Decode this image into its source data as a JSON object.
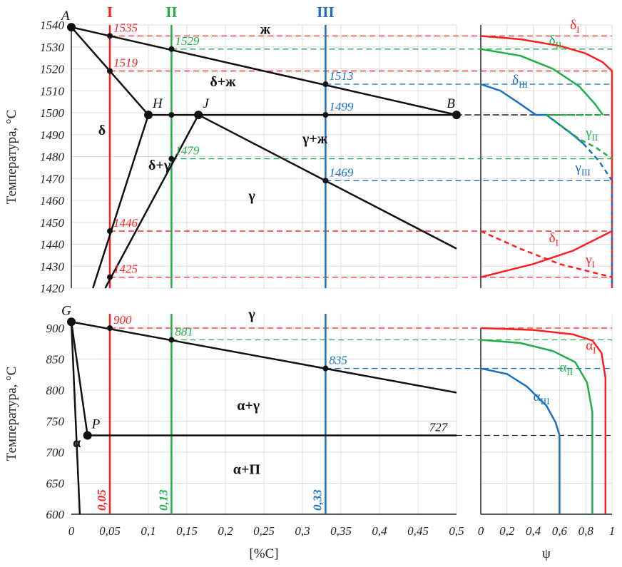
{
  "chart_data": [
    {
      "type": "line",
      "panel": "top-left",
      "ylabel": "Температура, °C",
      "xlim": [
        0,
        0.5
      ],
      "ylim": [
        1420,
        1540
      ],
      "yticks": [
        "1420",
        "1430",
        "1440",
        "1450",
        "1460",
        "1470",
        "1480",
        "1490",
        "1500",
        "1510",
        "1520",
        "1530",
        "1540"
      ],
      "grid": true,
      "lines": [
        {
          "name": "liquidus AB",
          "points": [
            [
              0,
              1539
            ],
            [
              0.5,
              1499
            ]
          ]
        },
        {
          "name": "solidus AH",
          "points": [
            [
              0,
              1539
            ],
            [
              0.1,
              1499
            ]
          ]
        },
        {
          "name": "peritectic HB",
          "points": [
            [
              0.1,
              1499
            ],
            [
              0.5,
              1499
            ]
          ]
        },
        {
          "name": "JC",
          "points": [
            [
              0.165,
              1499
            ],
            [
              0.5,
              1438
            ]
          ]
        },
        {
          "name": "H-lower",
          "points": [
            [
              0.1,
              1499
            ],
            [
              0.028,
              1420
            ]
          ]
        },
        {
          "name": "J-lower",
          "points": [
            [
              0.165,
              1499
            ],
            [
              0.044,
              1420
            ]
          ]
        }
      ],
      "points": [
        {
          "label": "A",
          "x": 0,
          "y": 1539
        },
        {
          "label": "H",
          "x": 0.1,
          "y": 1499
        },
        {
          "label": "J",
          "x": 0.165,
          "y": 1499
        },
        {
          "label": "B",
          "x": 0.5,
          "y": 1499
        }
      ],
      "regions": [
        {
          "label": "ж",
          "x": 0.245,
          "y": 1536
        },
        {
          "label": "δ+ж",
          "x": 0.18,
          "y": 1512
        },
        {
          "label": "δ",
          "x": 0.035,
          "y": 1490
        },
        {
          "label": "δ+γ",
          "x": 0.1,
          "y": 1474
        },
        {
          "label": "γ+ж",
          "x": 0.3,
          "y": 1486
        },
        {
          "label": "γ",
          "x": 0.23,
          "y": 1460
        }
      ],
      "marks": [
        {
          "label": "1535",
          "x": 0.05,
          "y": 1535,
          "alloy": 0
        },
        {
          "label": "1519",
          "x": 0.05,
          "y": 1519,
          "alloy": 0
        },
        {
          "label": "1446",
          "x": 0.05,
          "y": 1446,
          "alloy": 0
        },
        {
          "label": "1425",
          "x": 0.05,
          "y": 1425,
          "alloy": 0
        },
        {
          "label": "1529",
          "x": 0.13,
          "y": 1529,
          "alloy": 1
        },
        {
          "label": "1479",
          "x": 0.13,
          "y": 1479,
          "alloy": 1
        },
        {
          "label": "1513",
          "x": 0.33,
          "y": 1513,
          "alloy": 2
        },
        {
          "label": "1469",
          "x": 0.33,
          "y": 1469,
          "alloy": 2
        },
        {
          "label": "1499",
          "x": 0.33,
          "y": 1499,
          "alloy": 2,
          "black": true
        }
      ]
    },
    {
      "type": "line",
      "panel": "bottom-left",
      "ylabel": "Температура, °C",
      "xlabel": "[%C]",
      "xlim": [
        0,
        0.5
      ],
      "ylim": [
        600,
        900
      ],
      "yticks": [
        "600",
        "650",
        "700",
        "750",
        "800",
        "850",
        "900"
      ],
      "xticks": [
        "0",
        "0,05",
        "0,1",
        "0,15",
        "0,2",
        "0,25",
        "0,3",
        "0,35",
        "0,4",
        "0,45",
        "0,5"
      ],
      "grid": true,
      "lines": [
        {
          "name": "GS",
          "points": [
            [
              0,
              910
            ],
            [
              0.5,
              796
            ]
          ]
        },
        {
          "name": "GP",
          "points": [
            [
              0,
              910
            ],
            [
              0.021,
              727
            ]
          ]
        },
        {
          "name": "GQ",
          "points": [
            [
              0,
              910
            ],
            [
              0.011,
              600
            ]
          ]
        },
        {
          "name": "PS 727",
          "points": [
            [
              0.021,
              727
            ],
            [
              0.5,
              727
            ]
          ]
        }
      ],
      "points": [
        {
          "label": "G",
          "x": 0,
          "y": 910
        },
        {
          "label": "P",
          "x": 0.021,
          "y": 727
        }
      ],
      "regions": [
        {
          "label": "γ",
          "x": 0.23,
          "y": 915
        },
        {
          "label": "α+γ",
          "x": 0.215,
          "y": 768
        },
        {
          "label": "α",
          "x": 0.002,
          "y": 708
        },
        {
          "label": "α+П",
          "x": 0.21,
          "y": 665
        }
      ],
      "marks": [
        {
          "label": "900",
          "x": 0.05,
          "y": 900,
          "alloy": 0
        },
        {
          "label": "881",
          "x": 0.13,
          "y": 881,
          "alloy": 1
        },
        {
          "label": "835",
          "x": 0.33,
          "y": 835,
          "alloy": 2
        },
        {
          "label": "727",
          "x": 0.46,
          "y": 727,
          "alloy": -1
        }
      ]
    },
    {
      "type": "line",
      "panel": "top-right",
      "xlim": [
        0,
        1
      ],
      "ylim": [
        1420,
        1540
      ],
      "series": [
        {
          "name": "δI",
          "alloy": 0,
          "dash": false,
          "points": [
            [
              0,
              1535
            ],
            [
              0.3,
              1533.5
            ],
            [
              0.6,
              1530.5
            ],
            [
              0.8,
              1527
            ],
            [
              0.93,
              1523
            ],
            [
              1,
              1519
            ],
            [
              1,
              1420
            ]
          ]
        },
        {
          "name": "δII",
          "alloy": 1,
          "dash": false,
          "points": [
            [
              0,
              1529
            ],
            [
              0.3,
              1526
            ],
            [
              0.55,
              1520
            ],
            [
              0.75,
              1512
            ],
            [
              0.87,
              1504
            ],
            [
              0.93,
              1499
            ]
          ]
        },
        {
          "name": "δII-flat",
          "alloy": 1,
          "dash": true,
          "points": [
            [
              0.42,
              1499
            ],
            [
              0.93,
              1499
            ]
          ]
        },
        {
          "name": "δIII",
          "alloy": 2,
          "dash": false,
          "points": [
            [
              0,
              1513
            ],
            [
              0.15,
              1510
            ],
            [
              0.3,
              1504
            ],
            [
              0.42,
              1499
            ],
            [
              0.5,
              1499
            ],
            [
              0.7,
              1490
            ],
            [
              0.78,
              1486
            ]
          ]
        },
        {
          "name": "γIII",
          "alloy": 2,
          "dash": true,
          "points": [
            [
              0.78,
              1486
            ],
            [
              0.9,
              1478
            ],
            [
              1,
              1469
            ],
            [
              1,
              1420
            ]
          ]
        },
        {
          "name": "γII",
          "alloy": 1,
          "dash": true,
          "points": [
            [
              0.5,
              1499
            ],
            [
              0.75,
              1488
            ],
            [
              0.88,
              1484
            ],
            [
              1,
              1479
            ]
          ]
        },
        {
          "name": "δI-low",
          "alloy": 0,
          "dash": false,
          "points": [
            [
              0,
              1425
            ],
            [
              0.4,
              1431
            ],
            [
              0.7,
              1437
            ],
            [
              1,
              1446
            ]
          ]
        },
        {
          "name": "γI",
          "alloy": 0,
          "dash": true,
          "points": [
            [
              0,
              1446
            ],
            [
              0.3,
              1438
            ],
            [
              0.6,
              1431
            ],
            [
              0.8,
              1428
            ],
            [
              1,
              1425
            ]
          ]
        }
      ],
      "labels": [
        {
          "text": "δ",
          "sub": "I",
          "alloy": 0,
          "x": 0.68,
          "y": 1538
        },
        {
          "text": "δ",
          "sub": "II",
          "alloy": 1,
          "x": 0.52,
          "y": 1531
        },
        {
          "text": "δ",
          "sub": "III",
          "alloy": 2,
          "x": 0.24,
          "y": 1513
        },
        {
          "text": "γ",
          "sub": "II",
          "alloy": 1,
          "x": 0.8,
          "y": 1489
        },
        {
          "text": "γ",
          "sub": "III",
          "alloy": 2,
          "x": 0.72,
          "y": 1473
        },
        {
          "text": "δ",
          "sub": "I",
          "alloy": 0,
          "x": 0.52,
          "y": 1441
        },
        {
          "text": "γ",
          "sub": "I",
          "alloy": 0,
          "x": 0.8,
          "y": 1431
        }
      ]
    },
    {
      "type": "line",
      "panel": "bottom-right",
      "xlabel": "ψ",
      "xlim": [
        0,
        1
      ],
      "ylim": [
        600,
        900
      ],
      "xticks": [
        "0",
        "0,2",
        "0,4",
        "0,6",
        "0,8",
        "1"
      ],
      "series": [
        {
          "name": "αI",
          "alloy": 0,
          "points": [
            [
              0,
              900
            ],
            [
              0.4,
              897
            ],
            [
              0.7,
              890
            ],
            [
              0.85,
              880
            ],
            [
              0.92,
              860
            ],
            [
              0.95,
              820
            ],
            [
              0.95,
              600
            ]
          ]
        },
        {
          "name": "αII",
          "alloy": 1,
          "points": [
            [
              0,
              881
            ],
            [
              0.3,
              876
            ],
            [
              0.55,
              863
            ],
            [
              0.72,
              845
            ],
            [
              0.81,
              812
            ],
            [
              0.85,
              765
            ],
            [
              0.85,
              600
            ]
          ]
        },
        {
          "name": "αIII",
          "alloy": 2,
          "points": [
            [
              0,
              835
            ],
            [
              0.2,
              826
            ],
            [
              0.35,
              806
            ],
            [
              0.5,
              775
            ],
            [
              0.57,
              748
            ],
            [
              0.6,
              727
            ],
            [
              0.6,
              600
            ]
          ]
        }
      ],
      "labels": [
        {
          "text": "α",
          "sub": "I",
          "alloy": 0,
          "x": 0.8,
          "y": 865
        },
        {
          "text": "α",
          "sub": "II",
          "alloy": 1,
          "x": 0.6,
          "y": 830
        },
        {
          "text": "α",
          "sub": "III",
          "alloy": 2,
          "x": 0.4,
          "y": 783
        }
      ]
    }
  ],
  "alloys": [
    {
      "name": "I",
      "c": 0.05,
      "c_label": "0,05",
      "color": "#ff1f1f"
    },
    {
      "name": "II",
      "c": 0.13,
      "c_label": "0,13",
      "color": "#1fae4a"
    },
    {
      "name": "III",
      "c": 0.33,
      "c_label": "0,33",
      "color": "#1b6fc4"
    }
  ]
}
